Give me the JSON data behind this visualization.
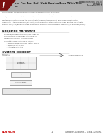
{
  "bg_color": "#ffffff",
  "header_bar_color": "#b0b0b0",
  "lutron_logo_bg": "#6b1a1a",
  "text_dark": "#1a1a1a",
  "text_gray": "#444444",
  "text_light": "#666666",
  "line_color": "#999999",
  "box_fill": "#f2f2f2",
  "box_stroke": "#888888",
  "footer_red": "#cc0000",
  "title_line1": "Application Note #630",
  "title_line2": "Revision 4",
  "title_line3": "November 2013",
  "doc_title1": "rol For Fan Coil Unit Controllers With The",
  "doc_title2": "at",
  "body_para1": [
    "controllers that can be configured to control valve actuators using a single con-",
    "signal. The FCU controller can also be configured to accommodate floating",
    "point (also known as “Tri-State” or “3-Point”) valves, using a separate wire harness and solid-state relays."
  ],
  "body_para2": [
    "Floating point control requires the valve actuator to have both OPEN (CW+) and CLOSE (CCW+) control",
    "relay inputs. If there is no signal (N/A point) on either input the actuator stays in its last position. The Actuator",
    "Running Time (ART) defines the time period for the valve can actuate from fully closed (0%) to fully open (100%)."
  ],
  "section_hardware": "Required Hardware",
  "hw_bullets": [
    "Palladiom Thermostat model (RMT-Y-SER-2S)",
    "FCU Controller model QED-DALI/DIM/0-10",
    "Wire harness model: LI-FCU-FCU-T&C",
    "Solid state relays (not sold by Lutron):",
    "Recommended: Schneider Electric: RSLV-1",
    "Relay: SSC 1A (5-30V)",
    "Alternate: SSAV-AC1"
  ],
  "section_topology": "System Topology",
  "topo_fcu_label": "FCU Unit",
  "topo_right_label": "To Internet or Devices",
  "topo_box_labels": [
    "Palladiom",
    "Thermostat"
  ],
  "topo_mid_label": "FCU Controller",
  "topo_relay_label": "Solid State Relays",
  "topo_valve_label": "Valve Actuator",
  "footer_company": "LUTRON",
  "footer_page": "1",
  "footer_right": "Customer Assistance — 1.844.LUTRON1"
}
